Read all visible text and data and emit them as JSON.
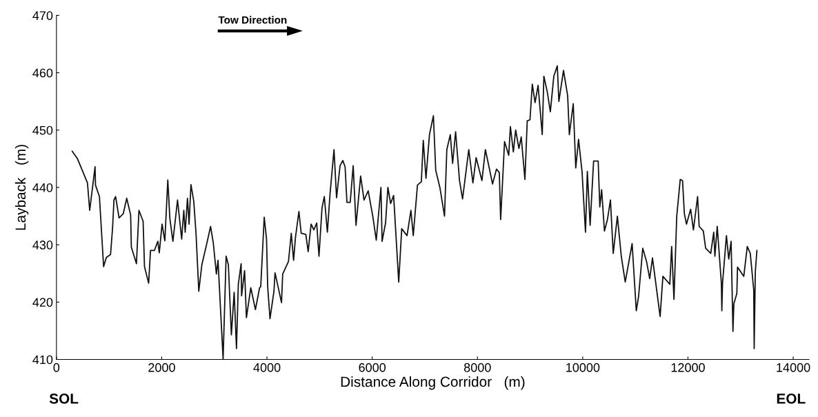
{
  "chart_data": {
    "type": "line",
    "xlabel": "Distance Along Corridor   (m)",
    "ylabel": "Layback   (m)",
    "annotations": [
      "Tow Direction",
      "SOL",
      "EOL"
    ],
    "xlim": [
      0,
      14300
    ],
    "xticks": [
      0,
      2000,
      4000,
      6000,
      8000,
      10000,
      12000,
      14000
    ],
    "ylim": [
      410,
      470
    ],
    "yticks": [
      410,
      420,
      430,
      440,
      450,
      460,
      470
    ],
    "grid": false,
    "legend": false,
    "marker": "none",
    "line_style": "solid",
    "series": [
      {
        "color": "#111111",
        "x": [
          300,
          400,
          589,
          632,
          734,
          742,
          817,
          896,
          949,
          1028,
          1067,
          1093,
          1124,
          1190,
          1269,
          1335,
          1410,
          1423,
          1520,
          1568,
          1647,
          1673,
          1752,
          1787,
          1861,
          1927,
          1954,
          2007,
          2060,
          2116,
          2155,
          2213,
          2301,
          2380,
          2420,
          2446,
          2490,
          2520,
          2556,
          2609,
          2652,
          2705,
          2763,
          2859,
          2929,
          2982,
          3039,
          3070,
          3167,
          3224,
          3267,
          3324,
          3377,
          3421,
          3456,
          3509,
          3518,
          3575,
          3610,
          3693,
          3781,
          3860,
          3882,
          3948,
          3992,
          4014,
          4058,
          4133,
          4154,
          4277,
          4299,
          4409,
          4462,
          4506,
          4541,
          4607,
          4651,
          4739,
          4783,
          4839,
          4892,
          4945,
          4989,
          5046,
          5090,
          5148,
          5200,
          5274,
          5323,
          5389,
          5441,
          5485,
          5520,
          5582,
          5639,
          5692,
          5780,
          5845,
          5924,
          6011,
          6077,
          6166,
          6188,
          6254,
          6298,
          6350,
          6407,
          6504,
          6561,
          6662,
          6736,
          6780,
          6860,
          6934,
          6970,
          7022,
          7088,
          7163,
          7207,
          7286,
          7374,
          7418,
          7484,
          7528,
          7585,
          7659,
          7717,
          7835,
          7914,
          7975,
          8085,
          8151,
          8287,
          8362,
          8415,
          8441,
          8515,
          8594,
          8626,
          8682,
          8726,
          8788,
          8832,
          8902,
          8946,
          8998,
          9042,
          9095,
          9152,
          9231,
          9262,
          9328,
          9385,
          9451,
          9517,
          9547,
          9635,
          9714,
          9746,
          9820,
          9868,
          9921,
          9987,
          10053,
          10088,
          10141,
          10207,
          10294,
          10325,
          10360,
          10413,
          10470,
          10527,
          10580,
          10659,
          10733,
          10808,
          10939,
          11018,
          11062,
          11141,
          11215,
          11273,
          11326,
          11471,
          11524,
          11655,
          11690,
          11734,
          11787,
          11853,
          11897,
          11932,
          11972,
          12051,
          12104,
          12183,
          12213,
          12292,
          12336,
          12433,
          12490,
          12512,
          12556,
          12635,
          12644,
          12657,
          12731,
          12775,
          12820,
          12855,
          12872,
          12929,
          12942,
          13061,
          13127,
          13184,
          13250,
          13258,
          13280,
          13310
        ],
        "values": [
          446.3,
          445,
          440.8,
          436,
          443.6,
          440.4,
          438.4,
          426.2,
          427.8,
          428.3,
          433,
          437.8,
          438.4,
          434.7,
          435.4,
          438.1,
          435.2,
          429.6,
          426.7,
          436,
          434.1,
          426.2,
          423.3,
          429,
          429,
          430.6,
          428.6,
          433.6,
          430.7,
          441.3,
          434.6,
          430.6,
          437.8,
          431,
          436,
          432.2,
          438.1,
          433.6,
          440.5,
          437.6,
          432,
          421.9,
          426.5,
          430.3,
          433.2,
          430.2,
          424.9,
          427.3,
          410.1,
          428,
          426.5,
          414.3,
          421.7,
          411.9,
          423.1,
          426.7,
          421.1,
          425.5,
          417.3,
          422.5,
          418.7,
          422.5,
          422.7,
          434.8,
          431,
          422.7,
          417.1,
          421.9,
          425.1,
          419.9,
          424.9,
          427.1,
          432,
          427.3,
          431.2,
          435.8,
          432,
          431.8,
          428.8,
          433.6,
          432.6,
          433.8,
          428,
          436.4,
          438.4,
          432.2,
          439,
          446.6,
          438.2,
          443.8,
          444.7,
          443.6,
          437.4,
          437.4,
          443.8,
          433.4,
          442,
          437.8,
          439.4,
          435,
          430.8,
          440,
          430.6,
          433.8,
          440,
          437.2,
          438.6,
          423.5,
          432.8,
          431.6,
          436,
          431.6,
          440.4,
          441,
          448.2,
          441.6,
          449.2,
          452.5,
          443,
          440,
          435,
          446.6,
          449.2,
          444.2,
          449.7,
          441.2,
          438,
          446.6,
          440.8,
          445.2,
          441.2,
          446.6,
          440.6,
          443.2,
          442.6,
          434.4,
          448,
          445.6,
          450.6,
          446.2,
          450,
          446.8,
          448.8,
          441.4,
          451.6,
          451.8,
          458,
          454.8,
          457.8,
          449.2,
          459.4,
          456.6,
          453.2,
          459.4,
          461.2,
          455,
          460.4,
          456,
          449.2,
          454.6,
          443.4,
          448.4,
          442.8,
          432.2,
          442.8,
          433.4,
          444.6,
          444.6,
          436.6,
          439.6,
          432.4,
          434.4,
          437.8,
          428.5,
          435,
          428,
          423.5,
          430.2,
          418.5,
          421,
          429.4,
          427,
          424.1,
          427.7,
          417.5,
          424.5,
          423.1,
          429.7,
          420.5,
          435,
          441.4,
          441.2,
          435.4,
          433.6,
          436.2,
          432.6,
          438.4,
          433.2,
          432.4,
          429.4,
          428.5,
          432.2,
          428,
          433.2,
          423.3,
          418.5,
          423.3,
          431.6,
          427.5,
          430.6,
          414.9,
          419.7,
          421.5,
          426.1,
          424.5,
          429.7,
          428.5,
          422.1,
          411.9,
          425.3,
          429
        ]
      }
    ]
  }
}
